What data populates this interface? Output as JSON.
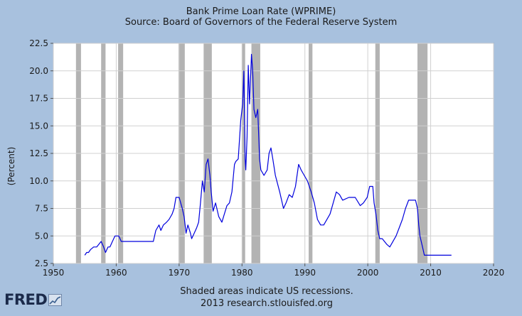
{
  "chart_data": {
    "type": "line",
    "title": "Bank Prime Loan Rate (WPRIME)",
    "subtitle": "Source: Board of Governors of the Federal Reserve System",
    "xlabel": "",
    "ylabel": "(Percent)",
    "xlim": [
      1950,
      2020
    ],
    "ylim": [
      2.5,
      22.5
    ],
    "x_ticks": [
      "1950",
      "1960",
      "1970",
      "1980",
      "1990",
      "2000",
      "2010",
      "2020"
    ],
    "y_ticks": [
      "2.5",
      "5.0",
      "7.5",
      "10.0",
      "12.5",
      "15.0",
      "17.5",
      "20.0",
      "22.5"
    ],
    "grid": true,
    "recessions": [
      [
        1953.6,
        1954.4
      ],
      [
        1957.6,
        1958.3
      ],
      [
        1960.3,
        1961.1
      ],
      [
        1969.9,
        1970.9
      ],
      [
        1973.9,
        1975.2
      ],
      [
        1980.0,
        1980.5
      ],
      [
        1981.5,
        1982.9
      ],
      [
        1990.6,
        1991.2
      ],
      [
        2001.2,
        2001.9
      ],
      [
        2007.9,
        2009.5
      ]
    ],
    "series": [
      {
        "name": "Bank Prime Loan Rate",
        "color": "#0000dd",
        "x": [
          1955.0,
          1955.3,
          1955.6,
          1955.9,
          1956.4,
          1956.9,
          1957.6,
          1958.0,
          1958.3,
          1958.7,
          1959.0,
          1959.4,
          1959.8,
          1960.4,
          1960.8,
          1965.9,
          1966.3,
          1966.8,
          1967.1,
          1967.5,
          1968.0,
          1968.4,
          1968.9,
          1969.2,
          1969.5,
          1970.0,
          1970.5,
          1970.8,
          1971.1,
          1971.4,
          1971.8,
          1972.0,
          1972.4,
          1972.8,
          1973.1,
          1973.4,
          1973.7,
          1974.0,
          1974.3,
          1974.6,
          1974.9,
          1975.1,
          1975.4,
          1975.8,
          1976.3,
          1976.8,
          1977.2,
          1977.6,
          1978.0,
          1978.4,
          1978.8,
          1979.0,
          1979.4,
          1979.8,
          1980.1,
          1980.3,
          1980.5,
          1980.6,
          1980.8,
          1981.0,
          1981.2,
          1981.5,
          1981.7,
          1981.9,
          1982.2,
          1982.5,
          1982.8,
          1983.0,
          1983.5,
          1984.0,
          1984.3,
          1984.6,
          1984.9,
          1985.3,
          1986.0,
          1986.6,
          1987.0,
          1987.5,
          1988.0,
          1988.5,
          1989.0,
          1989.4,
          1989.9,
          1990.4,
          1991.0,
          1991.5,
          1992.0,
          1992.5,
          1993.0,
          1994.0,
          1994.5,
          1995.0,
          1995.5,
          1996.0,
          1997.0,
          1998.0,
          1998.8,
          1999.3,
          1999.9,
          2000.3,
          2000.8,
          2001.0,
          2001.3,
          2001.6,
          2001.9,
          2002.3,
          2003.0,
          2003.5,
          2004.5,
          2005.0,
          2005.5,
          2006.0,
          2006.5,
          2007.0,
          2007.6,
          2007.9,
          2008.1,
          2008.3,
          2008.7,
          2009.0,
          2013.3
        ],
        "values": [
          3.25,
          3.5,
          3.5,
          3.75,
          4.0,
          4.0,
          4.5,
          4.0,
          3.5,
          4.0,
          4.0,
          4.5,
          5.0,
          5.0,
          4.5,
          4.5,
          5.5,
          6.0,
          5.5,
          6.0,
          6.25,
          6.5,
          7.0,
          7.5,
          8.5,
          8.5,
          7.5,
          6.75,
          5.25,
          6.0,
          5.25,
          4.75,
          5.25,
          5.75,
          6.25,
          8.0,
          10.0,
          9.0,
          11.5,
          12.0,
          10.5,
          9.0,
          7.25,
          8.0,
          6.75,
          6.25,
          7.0,
          7.75,
          8.0,
          9.0,
          11.5,
          11.75,
          12.0,
          15.5,
          17.0,
          20.0,
          12.0,
          11.0,
          14.0,
          20.5,
          17.0,
          21.5,
          20.0,
          16.5,
          15.75,
          16.5,
          12.0,
          11.0,
          10.5,
          11.0,
          12.5,
          13.0,
          12.0,
          10.5,
          9.0,
          7.5,
          8.0,
          8.75,
          8.5,
          9.5,
          11.5,
          11.0,
          10.5,
          10.0,
          9.0,
          8.0,
          6.5,
          6.0,
          6.0,
          7.0,
          8.0,
          9.0,
          8.75,
          8.25,
          8.5,
          8.5,
          7.75,
          8.0,
          8.5,
          9.5,
          9.5,
          8.0,
          7.0,
          5.5,
          4.75,
          4.75,
          4.25,
          4.0,
          5.0,
          5.75,
          6.5,
          7.5,
          8.25,
          8.25,
          8.25,
          7.5,
          6.0,
          5.0,
          4.0,
          3.25,
          3.25
        ]
      }
    ]
  },
  "footer": {
    "note": "Shaded areas indicate US recessions.",
    "credit": "2013 research.stlouisfed.org",
    "logo": "FRED"
  }
}
